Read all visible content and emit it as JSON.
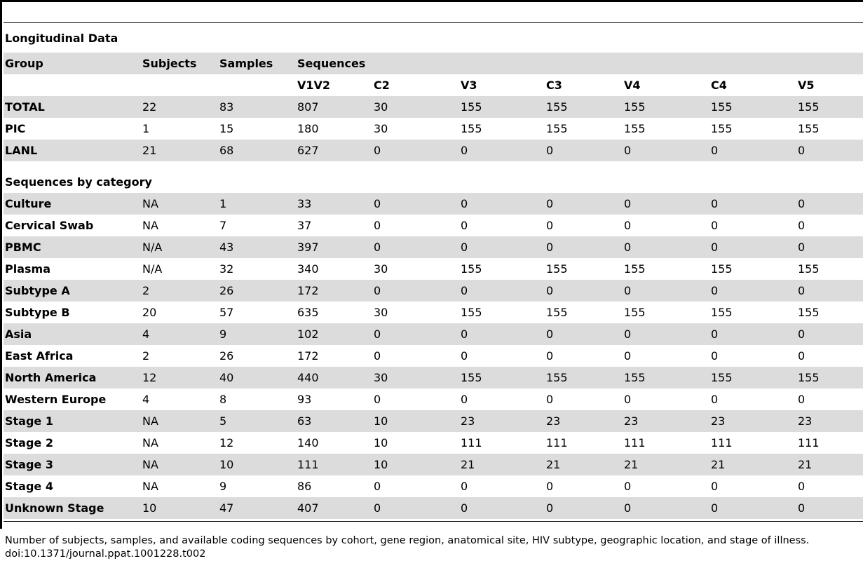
{
  "section_longitudinal": "Longitudinal Data",
  "section_category": "Sequences by category",
  "header1": [
    "Group",
    "Subjects",
    "Samples",
    "Sequences",
    "",
    "",
    "",
    "",
    "",
    ""
  ],
  "header2": [
    "",
    "",
    "",
    "V1V2",
    "C2",
    "V3",
    "C3",
    "V4",
    "C4",
    "V5"
  ],
  "rows_top": [
    [
      "TOTAL",
      "22",
      "83",
      "807",
      "30",
      "155",
      "155",
      "155",
      "155",
      "155"
    ],
    [
      "PIC",
      "1",
      "15",
      "180",
      "30",
      "155",
      "155",
      "155",
      "155",
      "155"
    ],
    [
      "LANL",
      "21",
      "68",
      "627",
      "0",
      "0",
      "0",
      "0",
      "0",
      "0"
    ]
  ],
  "rows_category": [
    [
      "Culture",
      "NA",
      "1",
      "33",
      "0",
      "0",
      "0",
      "0",
      "0",
      "0"
    ],
    [
      "Cervical Swab",
      "NA",
      "7",
      "37",
      "0",
      "0",
      "0",
      "0",
      "0",
      "0"
    ],
    [
      "PBMC",
      "N/A",
      "43",
      "397",
      "0",
      "0",
      "0",
      "0",
      "0",
      "0"
    ],
    [
      "Plasma",
      "N/A",
      "32",
      "340",
      "30",
      "155",
      "155",
      "155",
      "155",
      "155"
    ],
    [
      "Subtype A",
      "2",
      "26",
      "172",
      "0",
      "0",
      "0",
      "0",
      "0",
      "0"
    ],
    [
      "Subtype B",
      "20",
      "57",
      "635",
      "30",
      "155",
      "155",
      "155",
      "155",
      "155"
    ],
    [
      "Asia",
      "4",
      "9",
      "102",
      "0",
      "0",
      "0",
      "0",
      "0",
      "0"
    ],
    [
      "East Africa",
      "2",
      "26",
      "172",
      "0",
      "0",
      "0",
      "0",
      "0",
      "0"
    ],
    [
      "North America",
      "12",
      "40",
      "440",
      "30",
      "155",
      "155",
      "155",
      "155",
      "155"
    ],
    [
      "Western Europe",
      "4",
      "8",
      "93",
      "0",
      "0",
      "0",
      "0",
      "0",
      "0"
    ],
    [
      "Stage 1",
      "NA",
      "5",
      "63",
      "10",
      "23",
      "23",
      "23",
      "23",
      "23"
    ],
    [
      "Stage 2",
      "NA",
      "12",
      "140",
      "10",
      "111",
      "111",
      "111",
      "111",
      "111"
    ],
    [
      "Stage 3",
      "NA",
      "10",
      "111",
      "10",
      "21",
      "21",
      "21",
      "21",
      "21"
    ],
    [
      "Stage 4",
      "NA",
      "9",
      "86",
      "0",
      "0",
      "0",
      "0",
      "0",
      "0"
    ],
    [
      "Unknown Stage",
      "10",
      "47",
      "407",
      "0",
      "0",
      "0",
      "0",
      "0",
      "0"
    ]
  ],
  "footnote_line1": "Number of subjects, samples, and available coding sequences by cohort, gene region, anatomical site, HIV subtype, geographic location, and stage of illness.",
  "footnote_line2": "doi:10.1371/journal.ppat.1001228.t002"
}
